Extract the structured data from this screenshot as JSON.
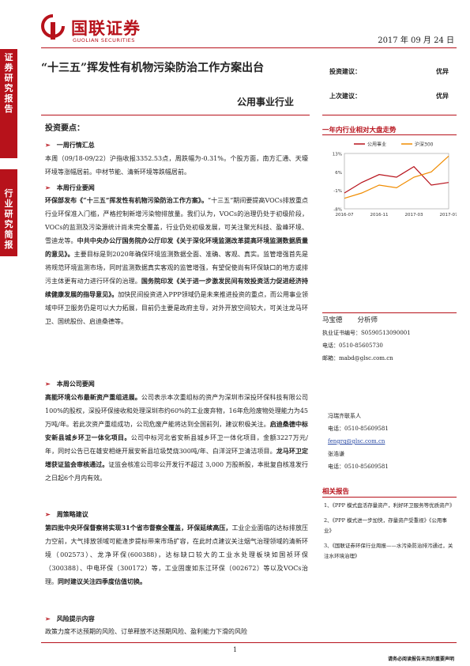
{
  "header": {
    "logo_cn": "国联证券",
    "logo_en": "GUOLIAN SECURITIES",
    "date": "2017 年 09 月 24 日"
  },
  "sidebar": {
    "top_label": [
      "证",
      "券",
      "研",
      "究",
      "报",
      "告"
    ],
    "mid_label": [
      "行",
      "业",
      "研",
      "究",
      "简",
      "报"
    ]
  },
  "title": "“十三五”挥发性有机物污染防治工作方案出台",
  "industry": "公用事业行业",
  "ratings": {
    "investment_label": "投资建议：",
    "investment_value": "优异",
    "previous_label": "上次建议：",
    "previous_value": "优异"
  },
  "summary_heading": "投资要点：",
  "sections": [
    {
      "heading": "一周行情汇总"
    },
    {
      "heading": "本周行业要闻"
    },
    {
      "heading": "本周公司要闻"
    },
    {
      "heading": "周策略建议"
    },
    {
      "heading": "风险提示内容"
    }
  ],
  "paragraphs": {
    "market": "本周（09/18-09/22）沪指收报3352.53点，周跌幅为-0.31%。个股方面，南方汇通、天壕环境等涨幅居前。中材节能、清新环境等跌幅居前。",
    "news1_bold": "环保部发布《“十三五”挥发性有机物污染防治工作方案》。",
    "news1": "“十三五”期间要提高VOCs排放重点行业环保准入门槛，严格控制新增污染物排放量。我们认为，VOCs的治理仍处于初级阶段，VOCs的监测及污染源统计尚未完全覆盖，行业仍处初级发展，可关注聚光科技、盈峰环境、雪迪龙等。",
    "news2_bold": "中共中央办公厅国务院办公厅印发《关于深化环境监测改革提高环境监测数据质量的意见》。",
    "news2": "主要目标是到2020年确保环境监测数据全面、准确、客观、真实。监管增强首先是将规范环境监测市场，同时监测数据真实客观的监管增强，有望促使尚有环保缺口的地方或排污主体更有动力进行环保的治理。",
    "news3_bold": "国务院印发《关于进一步激发民间有效投资活力促进经济持续健康发展的指导意见》。",
    "news3": "加快民间投资进入PPP领域仍是未来推进投资的重点，而公用事业领域中环卫服务仍是可以大力拓展，目前仍主要是政府主导，对外开放空间较大，可关注龙马环卫、国统股份、启迪桑德等。",
    "co1_bold": "高能环境公布最新资产重组进展。",
    "co1": "公司表示本次重组标的资产为深圳市深投环保科技有限公司100%的股权，深投环保接收和处理深圳市约60%的工业废弃物，16年危险废物处理能力为45万吨/年。若此次资产重组成功，公司危废产能将达到全国前列，建议积极关注。",
    "co2_bold": "启迪桑德中标安新县城乡环卫一体化项目。",
    "co2": "公司中标河北省安新县城乡环卫一体化项目，金额3227万元/年，同时公告已在雄安相继开展安新县垃圾焚烧300吨/年、白洋淀环卫清洁项目。",
    "co3_bold": "龙马环卫定增获证监会审核通过。",
    "co3": "证监会核准公司非公开发行不超过 3,000 万股新股，本批复自核准发行之日起6个月内有效。",
    "strategy_bold": "第四批中央环保督察将实现31个省市督察全覆盖，环保延续高压，",
    "strategy": "工业企业面临的达标排放压力空前，大气排放领域可能逢步提标带来市场扩容，在此时点建议关注烟气治理领域的清新环境（002573）、龙净环保(600388)，达标缺口较大的工业水处理板块如国祯环保（300388）、中电环保（300172）等，工业固废如东江环保（002672）等以及VOCs治理。",
    "strategy_bold2": "同时建议关注四季度估值切换。",
    "risk": "政策力度不达预期的风险、订单释放不达预期风险、盈利能力下滑的风险"
  },
  "chart": {
    "title": "一年内行业相对大盘走势",
    "legend": [
      "公用事业",
      "沪深300"
    ],
    "yticks": [
      "13%",
      "6%",
      "-1%",
      "-8%"
    ],
    "xticks": [
      "2016-07",
      "2016-11",
      "2017-03",
      "2017-07"
    ]
  },
  "chart_data": {
    "type": "line",
    "x": [
      "2016-07",
      "2016-09",
      "2016-11",
      "2017-01",
      "2017-03",
      "2017-05",
      "2017-07"
    ],
    "series": [
      {
        "name": "公用事业",
        "values": [
          -2,
          2,
          5,
          4,
          8,
          1,
          2
        ]
      },
      {
        "name": "沪深300",
        "values": [
          -4,
          -2,
          1,
          0,
          4,
          6,
          12
        ]
      }
    ],
    "ylim": [
      -8,
      13
    ]
  },
  "analyst": {
    "name": "马宝德",
    "role": "分析师",
    "cert": "执业证书编号：S0590513090001",
    "phone": "电话：0510-85605730",
    "email": "邮箱：mabd@glsc.com.cn"
  },
  "contact": {
    "contact_label": "冯瑞齐联系人",
    "contact_phone": "电话：0510-85609581",
    "contact_email": "fengrq@glsc.com.cn",
    "contact2": "张浩谦",
    "contact2_phone": "电话：0510-85609581"
  },
  "related": {
    "title": "相关报告",
    "items": [
      "1、《PPP 模式盘活存量资产，利好环卫服务等优质资产》",
      "2、《PPP 模式进一步加快，存量资产受重视》《公用事业》",
      "3、《国联证券环保行业周报——水污染防治排污通过，关注水环境治理》"
    ]
  },
  "footer": {
    "page": "1",
    "disclaimer": "请务必阅读报告末页的重要声明"
  }
}
